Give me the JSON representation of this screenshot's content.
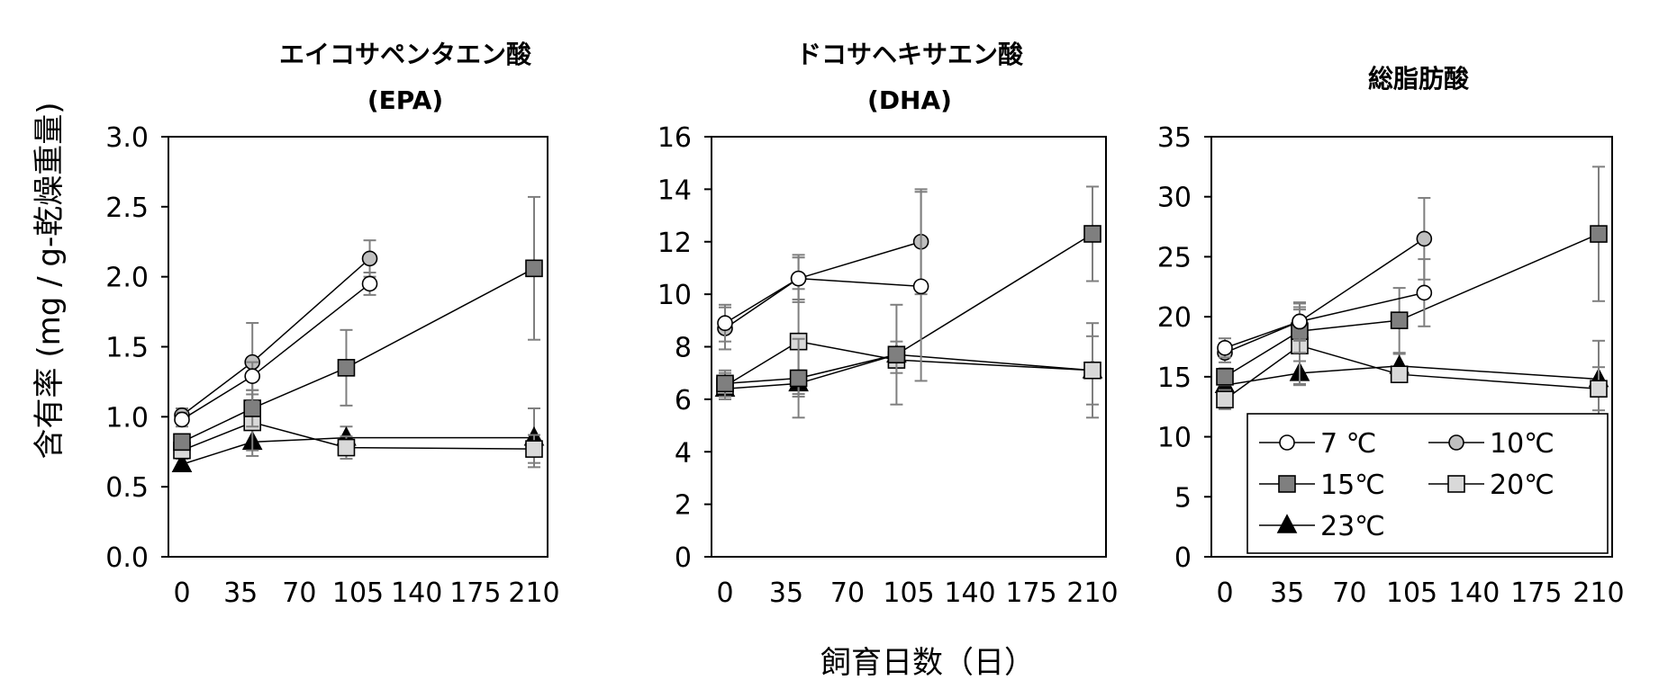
{
  "ylabel": "含有率 (mg / g-乾燥重量)",
  "xlabel": "飼育日数（日）",
  "xticks": [
    "0",
    "35",
    "70",
    "105",
    "140",
    "175",
    "210"
  ],
  "legend": [
    {
      "label": "7 ℃",
      "series": "7C"
    },
    {
      "label": "10℃",
      "series": "10C"
    },
    {
      "label": "15℃",
      "series": "15C"
    },
    {
      "label": "20℃",
      "series": "20C"
    },
    {
      "label": "23℃",
      "series": "23C"
    }
  ],
  "series_styles": {
    "7C": {
      "marker": "circle",
      "fill": "#ffffff"
    },
    "10C": {
      "marker": "circle",
      "fill": "#bfbfbf"
    },
    "15C": {
      "marker": "square",
      "fill": "#7f7f7f"
    },
    "20C": {
      "marker": "square",
      "fill": "#d9d9d9"
    },
    "23C": {
      "marker": "triangle",
      "fill": "#000000"
    }
  },
  "chart_data": [
    {
      "type": "line",
      "title": [
        "エイコサペンタエン酸",
        "(EPA)"
      ],
      "ylim": [
        0,
        3.0
      ],
      "yticks": [
        "0.0",
        "0.5",
        "1.0",
        "1.5",
        "2.0",
        "2.5",
        "3.0"
      ],
      "xlim": [
        0,
        210
      ],
      "series": [
        {
          "name": "7 ℃",
          "x": [
            0,
            42,
            112
          ],
          "y": [
            0.98,
            1.29,
            1.95
          ],
          "err": [
            0.05,
            0.1,
            0.08
          ]
        },
        {
          "name": "10℃",
          "x": [
            0,
            42,
            112
          ],
          "y": [
            1.01,
            1.39,
            2.13
          ],
          "err": [
            0.05,
            0.28,
            0.13
          ]
        },
        {
          "name": "15℃",
          "x": [
            0,
            42,
            98,
            210
          ],
          "y": [
            0.82,
            1.06,
            1.35,
            2.06
          ],
          "err": [
            0.05,
            0.13,
            0.27,
            0.51
          ]
        },
        {
          "name": "20℃",
          "x": [
            0,
            42,
            98,
            210
          ],
          "y": [
            0.76,
            0.96,
            0.78,
            0.77
          ],
          "err": [
            0.05,
            0.2,
            0.08,
            0.1
          ]
        },
        {
          "name": "23℃",
          "x": [
            0,
            42,
            98,
            210
          ],
          "y": [
            0.66,
            0.82,
            0.85,
            0.85
          ],
          "err": [
            0.04,
            0.1,
            0.08,
            0.21
          ]
        }
      ]
    },
    {
      "type": "line",
      "title": [
        "ドコサヘキサエン酸",
        "(DHA)"
      ],
      "ylim": [
        0,
        16
      ],
      "yticks": [
        "0",
        "2",
        "4",
        "6",
        "8",
        "10",
        "12",
        "14",
        "16"
      ],
      "xlim": [
        0,
        210
      ],
      "series": [
        {
          "name": "7 ℃",
          "x": [
            0,
            42,
            112
          ],
          "y": [
            8.9,
            10.6,
            10.3
          ],
          "err": [
            0.7,
            0.9,
            3.6
          ]
        },
        {
          "name": "10℃",
          "x": [
            0,
            42,
            112
          ],
          "y": [
            8.7,
            10.6,
            12.0
          ],
          "err": [
            0.8,
            0.8,
            2.0
          ]
        },
        {
          "name": "15℃",
          "x": [
            0,
            42,
            98,
            210
          ],
          "y": [
            6.6,
            6.8,
            7.7,
            12.3
          ],
          "err": [
            0.5,
            1.5,
            1.9,
            1.8
          ]
        },
        {
          "name": "20℃",
          "x": [
            0,
            42,
            98,
            210
          ],
          "y": [
            6.5,
            8.2,
            7.5,
            7.1
          ],
          "err": [
            0.5,
            2.0,
            0.5,
            1.8
          ]
        },
        {
          "name": "23℃",
          "x": [
            0,
            42,
            98,
            210
          ],
          "y": [
            6.4,
            6.6,
            7.7,
            7.1
          ],
          "err": [
            0.4,
            0.5,
            0.5,
            1.3
          ]
        }
      ]
    },
    {
      "type": "line",
      "title": [
        "総脂肪酸"
      ],
      "ylim": [
        0,
        35
      ],
      "yticks": [
        "0",
        "5",
        "10",
        "15",
        "20",
        "25",
        "30",
        "35"
      ],
      "xlim": [
        0,
        210
      ],
      "series": [
        {
          "name": "7 ℃",
          "x": [
            0,
            42,
            112
          ],
          "y": [
            17.4,
            19.6,
            22.0
          ],
          "err": [
            0.8,
            1.5,
            2.8
          ]
        },
        {
          "name": "10℃",
          "x": [
            0,
            42,
            112
          ],
          "y": [
            17.0,
            19.6,
            26.5
          ],
          "err": [
            0.8,
            1.6,
            3.4
          ]
        },
        {
          "name": "15℃",
          "x": [
            0,
            42,
            98,
            210
          ],
          "y": [
            15.0,
            18.8,
            19.7,
            26.9
          ],
          "err": [
            0.7,
            1.8,
            2.7,
            5.6
          ]
        },
        {
          "name": "20℃",
          "x": [
            0,
            42,
            98,
            210
          ],
          "y": [
            13.1,
            17.6,
            15.2,
            14.0
          ],
          "err": [
            0.8,
            3.2,
            0.5,
            1.8
          ]
        },
        {
          "name": "23℃",
          "x": [
            0,
            42,
            98,
            210
          ],
          "y": [
            14.3,
            15.3,
            15.9,
            14.8
          ],
          "err": [
            0.6,
            1.0,
            1.0,
            3.2
          ]
        }
      ]
    }
  ]
}
